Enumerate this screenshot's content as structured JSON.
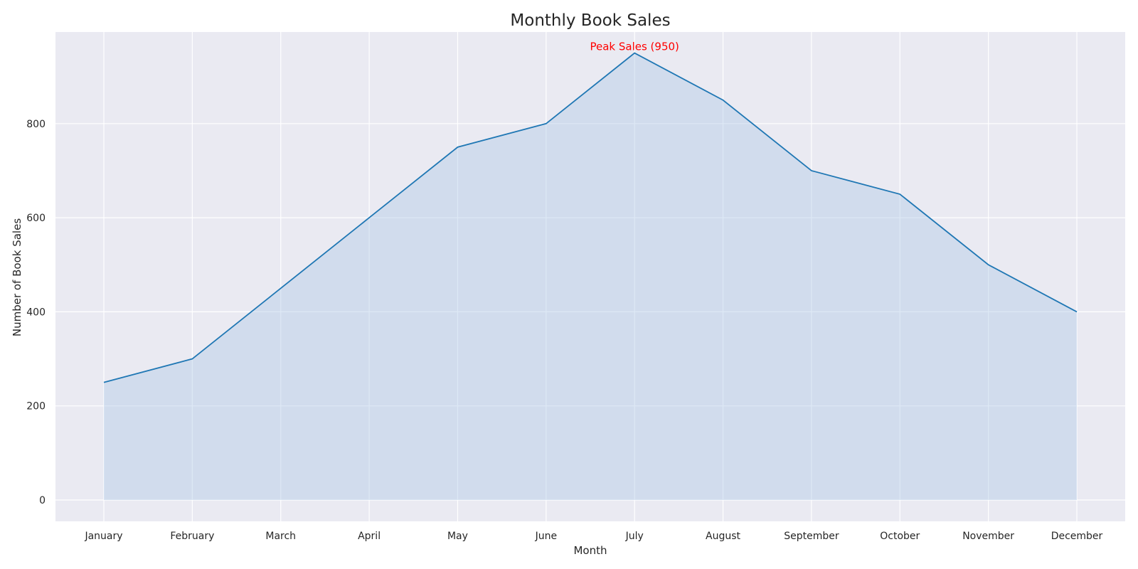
{
  "chart_data": {
    "type": "area",
    "title": "Monthly Book Sales",
    "xlabel": "Month",
    "ylabel": "Number of Book Sales",
    "categories": [
      "January",
      "February",
      "March",
      "April",
      "May",
      "June",
      "July",
      "August",
      "September",
      "October",
      "November",
      "December"
    ],
    "values": [
      250,
      300,
      450,
      600,
      750,
      800,
      950,
      850,
      700,
      650,
      500,
      400
    ],
    "ylim": [
      -45,
      1000
    ],
    "yticks": [
      0,
      200,
      400,
      600,
      800
    ],
    "ytick_labels": [
      "0",
      "200",
      "400",
      "600",
      "800"
    ],
    "grid": true,
    "annotation": {
      "text": "Peak Sales (950)",
      "category": "July",
      "value": 950,
      "color": "#ff0000"
    },
    "colors": {
      "line": "#1f77b4",
      "fill": "#aec7e8",
      "plot_background": "#eaeaf2",
      "grid": "#ffffff"
    }
  }
}
